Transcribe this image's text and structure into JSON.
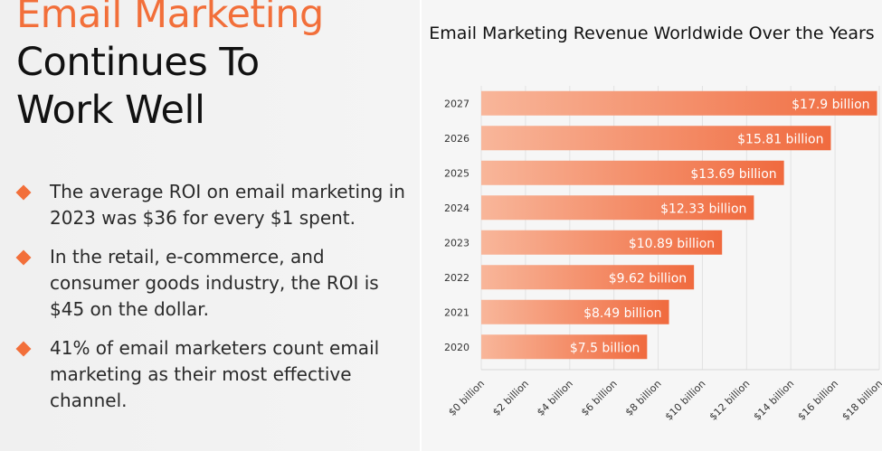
{
  "heading": {
    "line1": "Email Marketing",
    "line2": "Continues To",
    "line3": "Work Well"
  },
  "bullets": [
    {
      "text": "The average ROI on email marketing in 2023 was $36 for every $1 spent."
    },
    {
      "text": "In the retail, e-commerce, and consumer goods industry, the ROI is $45 on the dollar."
    },
    {
      "text": "41% of email marketers count email marketing as their most effective channel."
    }
  ],
  "colors": {
    "accent": "#f26f3a",
    "bar_start": "#f8b69a",
    "bar_end": "#f06a3e"
  },
  "chart_data": {
    "type": "bar",
    "orientation": "horizontal",
    "title": "Email Marketing Revenue Worldwide Over the Years",
    "categories": [
      "2027",
      "2026",
      "2025",
      "2024",
      "2023",
      "2022",
      "2021",
      "2020"
    ],
    "values": [
      17.9,
      15.81,
      13.69,
      12.33,
      10.89,
      9.62,
      8.49,
      7.5
    ],
    "data_labels": [
      "$17.9 billion",
      "$15.81 billion",
      "$13.69 billion",
      "$12.33 billion",
      "$10.89 billion",
      "$9.62 billion",
      "$8.49 billion",
      "$7.5 billion"
    ],
    "xlim": [
      0,
      18
    ],
    "xticks": [
      0,
      2,
      4,
      6,
      8,
      10,
      12,
      14,
      16,
      18
    ],
    "xtick_labels": [
      "$0 billion",
      "$2 billion",
      "$4 billion",
      "$6 billion",
      "$8 billion",
      "$10 billion",
      "$12 billion",
      "$14 billion",
      "$16 billion",
      "$18 billion"
    ],
    "grid": true,
    "legend": false
  }
}
